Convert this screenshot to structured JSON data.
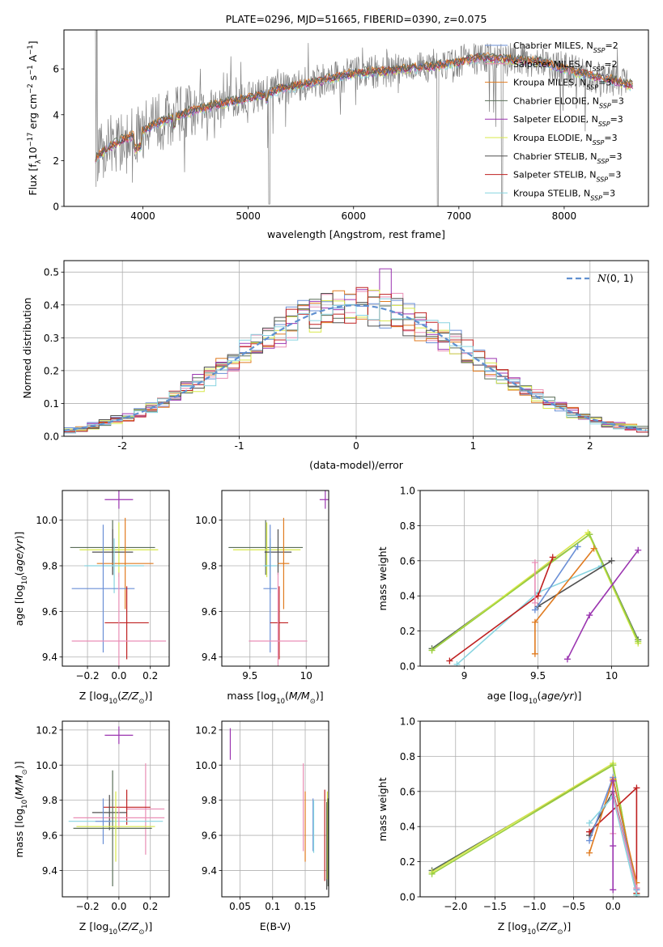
{
  "colors": {
    "Chabrier MILES": "#6a8fd6",
    "Salpeter MILES": "#ea8fb6",
    "Kroupa MILES": "#e07b20",
    "Chabrier ELODIE": "#5a6e58",
    "Salpeter ELODIE": "#9b35b0",
    "Kroupa ELODIE": "#d8e84a",
    "Chabrier STELIB": "#505050",
    "Salpeter STELIB": "#bf2020",
    "Kroupa STELIB": "#88d4e0",
    "extra_green": "#9ad040",
    "data": "#808080",
    "normal": "#6090d0"
  },
  "chart_data": [
    {
      "id": "spectrum",
      "type": "line",
      "title": "PLATE=0296, MJD=51665, FIBERID=0390, z=0.075",
      "xlabel": "wavelength [Angstrom, rest frame]",
      "ylabel": "Flux [f_λ 10^-17 erg cm^-2 s^-1 A^-1]",
      "xlim": [
        3250,
        8800
      ],
      "ylim": [
        0,
        7.7
      ],
      "xticks": [
        4000,
        5000,
        6000,
        7000,
        8000
      ],
      "yticks": [
        0,
        2,
        4,
        6
      ],
      "legend_position": "right",
      "legend": [
        {
          "model": "Chabrier MILES",
          "n": "2"
        },
        {
          "model": "Salpeter MILES",
          "n": "2"
        },
        {
          "model": "Kroupa MILES",
          "n": "3"
        },
        {
          "model": "Chabrier ELODIE",
          "n": "3"
        },
        {
          "model": "Salpeter ELODIE",
          "n": "3"
        },
        {
          "model": "Kroupa ELODIE",
          "n": "3"
        },
        {
          "model": "Chabrier STELIB",
          "n": "3"
        },
        {
          "model": "Salpeter STELIB",
          "n": "3"
        },
        {
          "model": "Kroupa STELIB",
          "n": "3"
        }
      ],
      "continuum": [
        [
          3550,
          2.1
        ],
        [
          3650,
          2.5
        ],
        [
          3800,
          2.9
        ],
        [
          3950,
          3.15
        ],
        [
          4100,
          3.55
        ],
        [
          4300,
          3.95
        ],
        [
          4500,
          4.2
        ],
        [
          4700,
          4.45
        ],
        [
          5000,
          4.7
        ],
        [
          5300,
          5.1
        ],
        [
          5600,
          5.4
        ],
        [
          6000,
          5.8
        ],
        [
          6300,
          5.9
        ],
        [
          6600,
          6.05
        ],
        [
          6900,
          6.2
        ],
        [
          7200,
          6.5
        ],
        [
          7500,
          6.4
        ],
        [
          7800,
          6.3
        ],
        [
          8100,
          5.85
        ],
        [
          8400,
          5.6
        ],
        [
          8600,
          5.3
        ]
      ]
    },
    {
      "id": "residuals",
      "type": "line",
      "xlabel": "(data-model)/error",
      "ylabel": "Normed distribution",
      "xlim": [
        -2.5,
        2.5
      ],
      "ylim": [
        0,
        0.535
      ],
      "xticks": [
        -2,
        -1,
        0,
        1,
        2
      ],
      "yticks": [
        0.0,
        0.1,
        0.2,
        0.3,
        0.4,
        0.5
      ],
      "grid": true,
      "legend_position": "top-right",
      "series": [
        {
          "name": "N(0,1)",
          "style": "dashed"
        }
      ],
      "histogram_bin_width": 0.1,
      "histogram_note": "nine model histograms scattered around the normal curve"
    },
    {
      "id": "age_vs_Z",
      "type": "scatter",
      "xlabel": "Z [log10(Z/Z_sun)]",
      "ylabel": "age [log10(age/yr)]",
      "xlim": [
        -0.36,
        0.32
      ],
      "ylim": [
        9.36,
        10.13
      ],
      "xticks": [
        -0.2,
        0.0,
        0.2
      ],
      "xticklabels": [
        "−0.2",
        "0.0",
        "0.2"
      ],
      "yticks": [
        9.4,
        9.6,
        9.8,
        10.0
      ],
      "grid": true,
      "points": [
        {
          "model": "Salpeter ELODIE",
          "x": 0.0,
          "y": 10.09,
          "xe": 0.09,
          "ye": 0.04
        },
        {
          "model": "Chabrier ELODIE",
          "x": -0.04,
          "y": 9.88,
          "xe": 0.27,
          "ye": 0.12
        },
        {
          "model": "Kroupa ELODIE",
          "x": 0.0,
          "y": 9.87,
          "xe": 0.25,
          "ye": 0.12
        },
        {
          "model": "Chabrier STELIB",
          "x": -0.04,
          "y": 9.86,
          "xe": 0.13,
          "ye": 0.1
        },
        {
          "model": "Kroupa MILES",
          "x": 0.04,
          "y": 9.81,
          "xe": 0.18,
          "ye": 0.2
        },
        {
          "model": "Kroupa STELIB",
          "x": -0.03,
          "y": 9.8,
          "xe": 0.19,
          "ye": 0.12
        },
        {
          "model": "Chabrier MILES",
          "x": -0.1,
          "y": 9.7,
          "xe": 0.2,
          "ye": 0.28
        },
        {
          "model": "Salpeter STELIB",
          "x": 0.05,
          "y": 9.55,
          "xe": 0.14,
          "ye": 0.16
        },
        {
          "model": "Salpeter MILES",
          "x": 0.0,
          "y": 9.47,
          "xe": 0.3,
          "ye": 0.3
        }
      ]
    },
    {
      "id": "age_vs_mass",
      "type": "scatter",
      "xlabel": "mass [log10(M/M_sun)]",
      "xlim": [
        9.25,
        10.2
      ],
      "ylim": [
        9.36,
        10.13
      ],
      "xticks": [
        9.5,
        10.0
      ],
      "yticks": [
        9.4,
        9.6,
        9.8,
        10.0
      ],
      "grid": true,
      "points": [
        {
          "model": "Salpeter ELODIE",
          "x": 10.17,
          "y": 10.09,
          "xe": 0.05,
          "ye": 0.04
        },
        {
          "model": "Chabrier ELODIE",
          "x": 9.64,
          "y": 9.88,
          "xe": 0.33,
          "ye": 0.12
        },
        {
          "model": "Kroupa ELODIE",
          "x": 9.65,
          "y": 9.87,
          "xe": 0.3,
          "ye": 0.12
        },
        {
          "model": "Chabrier STELIB",
          "x": 9.75,
          "y": 9.86,
          "xe": 0.12,
          "ye": 0.1
        },
        {
          "model": "Kroupa MILES",
          "x": 9.8,
          "y": 9.81,
          "xe": 0.05,
          "ye": 0.2
        },
        {
          "model": "Kroupa STELIB",
          "x": 9.68,
          "y": 9.8,
          "xe": 0.06,
          "ye": 0.12
        },
        {
          "model": "Chabrier MILES",
          "x": 9.68,
          "y": 9.7,
          "xe": 0.06,
          "ye": 0.28
        },
        {
          "model": "Salpeter STELIB",
          "x": 9.76,
          "y": 9.55,
          "xe": 0.08,
          "ye": 0.16
        },
        {
          "model": "Salpeter MILES",
          "x": 9.75,
          "y": 9.47,
          "xe": 0.26,
          "ye": 0.3
        }
      ]
    },
    {
      "id": "weight_vs_age",
      "type": "line",
      "xlabel": "age [log10(age/yr)]",
      "ylabel": "mass weight",
      "xlim": [
        8.7,
        10.25
      ],
      "ylim": [
        0,
        1.0
      ],
      "xticks": [
        9.0,
        9.5,
        10.0
      ],
      "yticks": [
        0.0,
        0.2,
        0.4,
        0.6,
        0.8,
        1.0
      ],
      "grid": true,
      "series": [
        {
          "model": "Chabrier ELODIE",
          "points": [
            [
              8.78,
              0.1
            ],
            [
              9.85,
              0.75
            ],
            [
              10.18,
              0.15
            ]
          ]
        },
        {
          "model": "Kroupa ELODIE",
          "points": [
            [
              8.78,
              0.09
            ],
            [
              9.84,
              0.76
            ],
            [
              10.18,
              0.13
            ]
          ]
        },
        {
          "model": "extra_green",
          "points": [
            [
              8.78,
              0.09
            ],
            [
              9.85,
              0.75
            ],
            [
              10.18,
              0.14
            ]
          ]
        },
        {
          "model": "Kroupa STELIB",
          "points": [
            [
              8.95,
              0.01
            ],
            [
              9.5,
              0.42
            ],
            [
              9.93,
              0.57
            ]
          ]
        },
        {
          "model": "Chabrier STELIB",
          "points": [
            [
              9.5,
              0.34
            ],
            [
              10.0,
              0.6
            ]
          ]
        },
        {
          "model": "Salpeter STELIB",
          "points": [
            [
              8.9,
              0.03
            ],
            [
              9.5,
              0.4
            ],
            [
              9.6,
              0.62
            ]
          ]
        },
        {
          "model": "Chabrier MILES",
          "points": [
            [
              9.48,
              0.32
            ],
            [
              9.77,
              0.68
            ]
          ]
        },
        {
          "model": "Salpeter MILES",
          "points": [
            [
              9.48,
              0.36
            ],
            [
              9.48,
              0.59
            ]
          ]
        },
        {
          "model": "Kroupa MILES",
          "points": [
            [
              9.48,
              0.07
            ],
            [
              9.48,
              0.25
            ],
            [
              9.88,
              0.67
            ]
          ]
        },
        {
          "model": "Salpeter ELODIE",
          "points": [
            [
              9.7,
              0.04
            ],
            [
              9.85,
              0.29
            ],
            [
              10.18,
              0.66
            ]
          ]
        }
      ]
    },
    {
      "id": "mass_vs_Z",
      "type": "scatter",
      "xlabel": "Z [log10(Z/Z_sun)]",
      "ylabel": "mass [log10(M/M_sun)]",
      "xlim": [
        -0.36,
        0.32
      ],
      "ylim": [
        9.25,
        10.25
      ],
      "xticks": [
        -0.2,
        0.0,
        0.2
      ],
      "xticklabels": [
        "−0.2",
        "0.0",
        "0.2"
      ],
      "yticks": [
        9.4,
        9.6,
        9.8,
        10.0,
        10.2
      ],
      "grid": true,
      "points": [
        {
          "model": "Salpeter ELODIE",
          "x": 0.0,
          "y": 10.17,
          "xe": 0.09,
          "ye": 0.05
        },
        {
          "model": "Salpeter MILES",
          "x": 0.17,
          "y": 9.75,
          "xe": 0.12,
          "ye": 0.26
        },
        {
          "model": "Salpeter STELIB",
          "x": 0.05,
          "y": 9.76,
          "xe": 0.15,
          "ye": 0.1
        },
        {
          "model": "Chabrier STELIB",
          "x": -0.06,
          "y": 9.73,
          "xe": 0.11,
          "ye": 0.1
        },
        {
          "model": "Kroupa STELIB",
          "x": -0.02,
          "y": 9.68,
          "xe": 0.3,
          "ye": 0.07
        },
        {
          "model": "Salpeter MILES",
          "x": 0.0,
          "y": 9.7,
          "xe": 0.29,
          "ye": 0.06
        },
        {
          "model": "Chabrier MILES",
          "x": -0.1,
          "y": 9.68,
          "xe": 0.05,
          "ye": 0.13
        },
        {
          "model": "Chabrier ELODIE",
          "x": -0.04,
          "y": 9.64,
          "xe": 0.25,
          "ye": 0.33
        },
        {
          "model": "Kroupa ELODIE",
          "x": -0.02,
          "y": 9.65,
          "xe": 0.25,
          "ye": 0.2
        }
      ]
    },
    {
      "id": "mass_vs_ebv",
      "type": "scatter",
      "xlabel": "E(B-V)",
      "xlim": [
        0.022,
        0.186
      ],
      "ylim": [
        9.25,
        10.25
      ],
      "xticks": [
        0.05,
        0.1,
        0.15
      ],
      "yticks": [
        9.4,
        9.6,
        9.8,
        10.0,
        10.2
      ],
      "grid": true,
      "points": [
        {
          "model": "Salpeter ELODIE",
          "x": 0.035,
          "y": 10.12,
          "ye": 0.09
        },
        {
          "model": "Salpeter MILES",
          "x": 0.147,
          "y": 9.76,
          "ye": 0.25
        },
        {
          "model": "Kroupa MILES",
          "x": 0.15,
          "y": 9.65,
          "ye": 0.2
        },
        {
          "model": "Chabrier MILES",
          "x": 0.162,
          "y": 9.66,
          "ye": 0.15
        },
        {
          "model": "Kroupa STELIB",
          "x": 0.163,
          "y": 9.65,
          "ye": 0.15
        },
        {
          "model": "Salpeter STELIB",
          "x": 0.18,
          "y": 9.6,
          "ye": 0.26
        },
        {
          "model": "Chabrier STELIB",
          "x": 0.183,
          "y": 9.54,
          "ye": 0.25
        },
        {
          "model": "Kroupa ELODIE",
          "x": 0.184,
          "y": 9.6,
          "ye": 0.25
        },
        {
          "model": "Chabrier ELODIE",
          "x": 0.185,
          "y": 9.56,
          "ye": 0.25
        }
      ]
    },
    {
      "id": "weight_vs_Z",
      "type": "line",
      "xlabel": "Z [log10(Z/Z_sun)]",
      "ylabel": "mass weight",
      "xlim": [
        -2.45,
        0.45
      ],
      "ylim": [
        0,
        1.0
      ],
      "xticks": [
        -2.0,
        -1.5,
        -1.0,
        -0.5,
        0.0
      ],
      "xticklabels": [
        "−2.0",
        "−1.5",
        "−1.0",
        "−0.5",
        "0.0"
      ],
      "yticks": [
        0.0,
        0.2,
        0.4,
        0.6,
        0.8,
        1.0
      ],
      "grid": true,
      "series": [
        {
          "model": "Chabrier ELODIE",
          "points": [
            [
              -2.3,
              0.15
            ],
            [
              0.0,
              0.75
            ],
            [
              0.3,
              0.02
            ]
          ]
        },
        {
          "model": "Kroupa ELODIE",
          "points": [
            [
              -2.3,
              0.14
            ],
            [
              0.0,
              0.76
            ],
            [
              0.3,
              0.01
            ]
          ]
        },
        {
          "model": "extra_green",
          "points": [
            [
              -2.3,
              0.13
            ],
            [
              0.0,
              0.75
            ],
            [
              0.3,
              0.02
            ]
          ]
        },
        {
          "model": "Chabrier STELIB",
          "points": [
            [
              -0.3,
              0.35
            ],
            [
              0.0,
              0.6
            ],
            [
              0.3,
              0.05
            ]
          ]
        },
        {
          "model": "Salpeter STELIB",
          "points": [
            [
              -0.3,
              0.37
            ],
            [
              0.3,
              0.62
            ],
            [
              0.3,
              0.02
            ]
          ]
        },
        {
          "model": "Chabrier MILES",
          "points": [
            [
              -0.3,
              0.32
            ],
            [
              0.0,
              0.68
            ],
            [
              0.3,
              0.04
            ]
          ]
        },
        {
          "model": "Kroupa MILES",
          "points": [
            [
              -0.3,
              0.25
            ],
            [
              0.0,
              0.67
            ],
            [
              0.3,
              0.08
            ]
          ]
        },
        {
          "model": "Kroupa STELIB",
          "points": [
            [
              -0.3,
              0.42
            ],
            [
              0.0,
              0.57
            ],
            [
              0.3,
              0.01
            ]
          ]
        },
        {
          "model": "Salpeter MILES",
          "points": [
            [
              0.0,
              0.36
            ],
            [
              0.0,
              0.59
            ],
            [
              0.3,
              0.05
            ]
          ]
        },
        {
          "model": "Salpeter ELODIE",
          "points": [
            [
              0.0,
              0.04
            ],
            [
              0.0,
              0.29
            ],
            [
              0.0,
              0.66
            ]
          ]
        }
      ]
    }
  ]
}
